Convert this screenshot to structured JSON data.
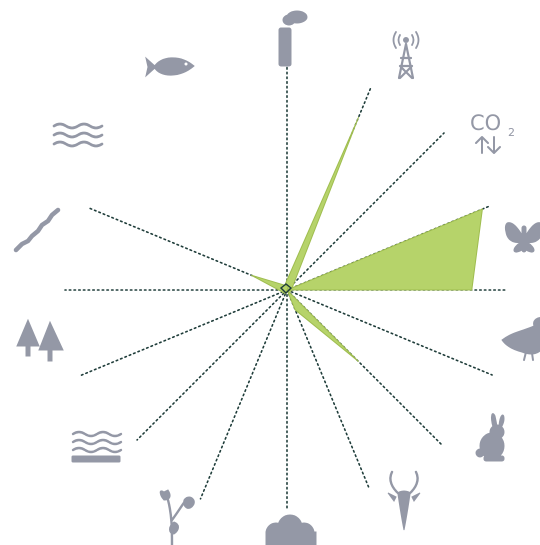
{
  "chart_data": {
    "type": "radar",
    "axis_count": 16,
    "axes": [
      {
        "icon": "factory-icon",
        "value": 0
      },
      {
        "icon": "radio-tower-icon",
        "value": 0.85
      },
      {
        "icon": "co2-icon",
        "value": 0
      },
      {
        "icon": "butterfly-icon",
        "value": 0.97
      },
      {
        "icon": "bird-icon",
        "value": 0.84
      },
      {
        "icon": "rabbit-icon",
        "value": 0
      },
      {
        "icon": "antelope-icon",
        "value": 0.46
      },
      {
        "icon": "cloud-icon",
        "value": 0.1
      },
      {
        "icon": "plant-icon",
        "value": 0
      },
      {
        "icon": "water-pool-icon",
        "value": 0
      },
      {
        "icon": "trees-icon",
        "value": 0
      },
      {
        "icon": "river-icon",
        "value": 0
      },
      {
        "icon": "water-waves-icon",
        "value": 0
      },
      {
        "icon": "fish-icon",
        "value": 0.18
      },
      {
        "icon": "unused-axis",
        "value": 0
      },
      {
        "icon": "unused-axis",
        "value": 0
      }
    ],
    "co2_label": "CO",
    "co2_subscript": "2",
    "fill_color": "#b6d36a",
    "icon_color": "#9498a6",
    "spoke_color": "#1f3d3a",
    "grid": false,
    "legend": "none"
  }
}
